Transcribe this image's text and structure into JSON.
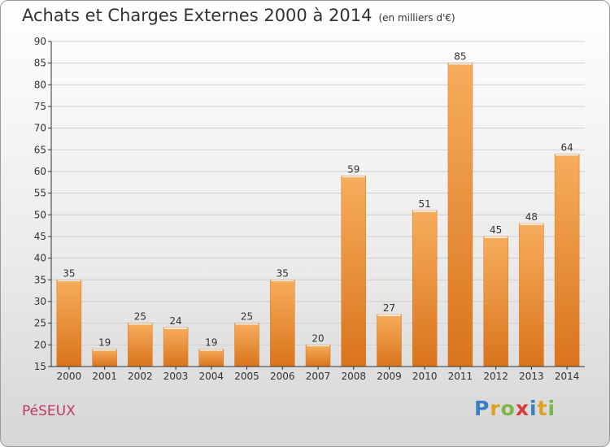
{
  "header": {
    "title": "Achats et Charges Externes 2000 à 2014",
    "unit": "(en milliers d'€)"
  },
  "footer": {
    "commune": "PéSEUX",
    "logo_letters": [
      "P",
      "r",
      "o",
      "x",
      "i",
      "t",
      "i"
    ],
    "logo_colors": [
      "#3a7fc1",
      "#e0a020",
      "#7ab648",
      "#d93a3a",
      "#3a7fc1",
      "#e0a020",
      "#7ab648"
    ]
  },
  "colors": {
    "bar": "#f0912f",
    "bar_light": "#f7ad5c",
    "bar_dark": "#d9741c",
    "grid": "#cfcfcf",
    "axis": "#333333"
  },
  "chart_data": {
    "type": "bar",
    "title": "Achats et Charges Externes 2000 à 2014",
    "categories": [
      "2000",
      "2001",
      "2002",
      "2003",
      "2004",
      "2005",
      "2006",
      "2007",
      "2008",
      "2009",
      "2010",
      "2011",
      "2012",
      "2013",
      "2014"
    ],
    "values": [
      35,
      19,
      25,
      24,
      19,
      25,
      35,
      20,
      59,
      27,
      51,
      85,
      45,
      48,
      64
    ],
    "ylim": [
      15,
      90
    ],
    "yticks": [
      15,
      20,
      25,
      30,
      35,
      40,
      45,
      50,
      55,
      60,
      65,
      70,
      75,
      80,
      85,
      90
    ],
    "grid": true
  }
}
